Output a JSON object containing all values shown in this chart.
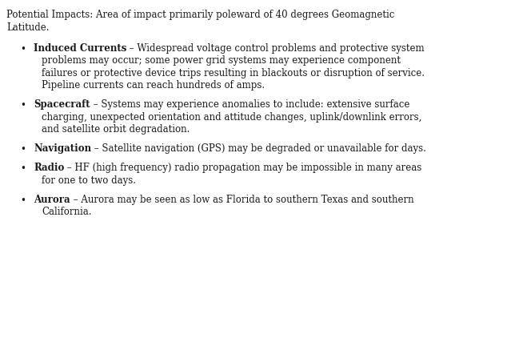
{
  "background_color": "#ffffff",
  "text_color": "#1a1a1a",
  "header_line1": "Potential Impacts: Area of impact primarily poleward of 40 degrees Geomagnetic",
  "header_line2": "Latitude.",
  "font_family": "DejaVu Serif",
  "font_size": 8.5,
  "figsize": [
    6.44,
    4.32
  ],
  "dpi": 100,
  "bullets": [
    {
      "bold": "Induced Currents",
      "lines": [
        " – Widespread voltage control problems and protective system",
        "problems may occur; some power grid systems may experience component",
        "failures or protective device trips resulting in blackouts or disruption of service.",
        "Pipeline currents can reach hundreds of amps."
      ]
    },
    {
      "bold": "Spacecraft",
      "lines": [
        " – Systems may experience anomalies to include: extensive surface",
        "charging, unexpected orientation and attitude changes, uplink/downlink errors,",
        "and satellite orbit degradation."
      ]
    },
    {
      "bold": "Navigation",
      "lines": [
        " – Satellite navigation (GPS) may be degraded or unavailable for days."
      ]
    },
    {
      "bold": "Radio",
      "lines": [
        " – HF (high frequency) radio propagation may be impossible in many areas",
        "for one to two days."
      ]
    },
    {
      "bold": "Aurora",
      "lines": [
        " – Aurora may be seen as low as Florida to southern Texas and southern",
        "California."
      ]
    }
  ]
}
